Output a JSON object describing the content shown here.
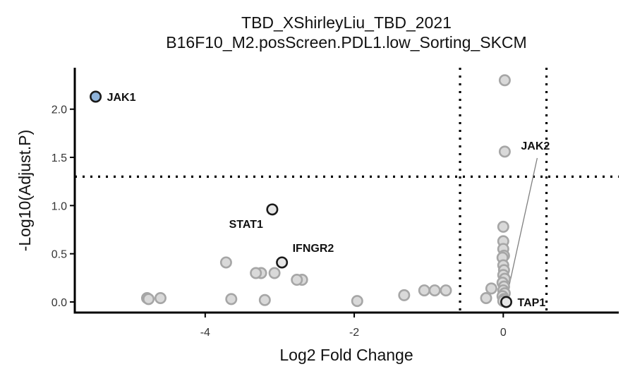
{
  "chart_data": {
    "type": "scatter",
    "title": "TBD_XShirleyLiu_TBD_2021",
    "subtitle": "B16F10_M2.posScreen.PDL1.low_Sorting_SKCM",
    "xlabel": "Log2 Fold Change",
    "ylabel": "-Log10(Adjust.P)",
    "xlim": [
      -5.75,
      1.55
    ],
    "ylim": [
      -0.11,
      2.43
    ],
    "xticks": [
      -4,
      -2,
      0
    ],
    "xtick_labels": [
      "-4",
      "-2",
      "0"
    ],
    "yticks": [
      0.0,
      0.5,
      1.0,
      1.5,
      2.0
    ],
    "ytick_labels": [
      "0.0",
      "0.5",
      "1.0",
      "1.5",
      "2.0"
    ],
    "thresholds": {
      "x": [
        -0.58,
        0.58
      ],
      "y": 1.3
    },
    "grid": false,
    "legend": "none",
    "colors": {
      "background_point_fill": "#d9d9d9",
      "background_point_stroke": "#a6a6a6",
      "highlight_fill": "#8fb3da",
      "highlight_stroke": "#1a1a1a",
      "labeled_fill": "#e6e6e6",
      "labeled_stroke": "#1a1a1a",
      "threshold_line": "#000000",
      "leader_line": "#808080"
    },
    "points": [
      {
        "x": -5.47,
        "y": 2.13,
        "group": "highlight"
      },
      {
        "x": -3.1,
        "y": 0.96,
        "group": "labeled"
      },
      {
        "x": -2.97,
        "y": 0.41,
        "group": "labeled"
      },
      {
        "x": 0.02,
        "y": 2.3,
        "group": "background"
      },
      {
        "x": 0.02,
        "y": 1.56,
        "group": "background"
      },
      {
        "x": 0.0,
        "y": 0.78,
        "group": "background"
      },
      {
        "x": 0.0,
        "y": 0.63,
        "group": "background"
      },
      {
        "x": 0.0,
        "y": 0.55,
        "group": "background"
      },
      {
        "x": 0.01,
        "y": 0.48,
        "group": "background"
      },
      {
        "x": -0.01,
        "y": 0.46,
        "group": "background"
      },
      {
        "x": 0.0,
        "y": 0.38,
        "group": "background"
      },
      {
        "x": 0.01,
        "y": 0.33,
        "group": "background"
      },
      {
        "x": 0.0,
        "y": 0.28,
        "group": "background"
      },
      {
        "x": 0.02,
        "y": 0.24,
        "group": "background"
      },
      {
        "x": -0.01,
        "y": 0.2,
        "group": "background"
      },
      {
        "x": 0.01,
        "y": 0.16,
        "group": "background"
      },
      {
        "x": 0.0,
        "y": 0.12,
        "group": "background"
      },
      {
        "x": 0.02,
        "y": 0.09,
        "group": "background"
      },
      {
        "x": -0.01,
        "y": 0.06,
        "group": "background"
      },
      {
        "x": 0.01,
        "y": 0.03,
        "group": "background"
      },
      {
        "x": 0.0,
        "y": 0.01,
        "group": "background"
      },
      {
        "x": 0.04,
        "y": 0.0,
        "group": "labeled"
      },
      {
        "x": -0.16,
        "y": 0.14,
        "group": "background"
      },
      {
        "x": -0.23,
        "y": 0.04,
        "group": "background"
      },
      {
        "x": -0.77,
        "y": 0.12,
        "group": "background"
      },
      {
        "x": -0.92,
        "y": 0.12,
        "group": "background"
      },
      {
        "x": -1.06,
        "y": 0.12,
        "group": "background"
      },
      {
        "x": -1.33,
        "y": 0.07,
        "group": "background"
      },
      {
        "x": -1.96,
        "y": 0.01,
        "group": "background"
      },
      {
        "x": -2.7,
        "y": 0.23,
        "group": "background"
      },
      {
        "x": -2.77,
        "y": 0.23,
        "group": "background"
      },
      {
        "x": -3.07,
        "y": 0.3,
        "group": "background"
      },
      {
        "x": -3.25,
        "y": 0.3,
        "group": "background"
      },
      {
        "x": -3.32,
        "y": 0.3,
        "group": "background"
      },
      {
        "x": -3.72,
        "y": 0.41,
        "group": "background"
      },
      {
        "x": -3.2,
        "y": 0.02,
        "group": "background"
      },
      {
        "x": -3.65,
        "y": 0.03,
        "group": "background"
      },
      {
        "x": -4.6,
        "y": 0.04,
        "group": "background"
      },
      {
        "x": -4.78,
        "y": 0.04,
        "group": "background"
      },
      {
        "x": -4.76,
        "y": 0.03,
        "group": "background"
      }
    ],
    "annotations": [
      {
        "label": "JAK1",
        "x": -5.47,
        "y": 2.13,
        "placement": "right"
      },
      {
        "label": "STAT1",
        "x": -3.1,
        "y": 0.96,
        "placement": "below-left"
      },
      {
        "label": "IFNGR2",
        "x": -2.97,
        "y": 0.41,
        "placement": "above-right"
      },
      {
        "label": "JAK2",
        "x": 0.02,
        "y": 0.0,
        "placement": "leader-above-right"
      },
      {
        "label": "TAP1",
        "x": 0.04,
        "y": 0.0,
        "placement": "right"
      }
    ]
  }
}
